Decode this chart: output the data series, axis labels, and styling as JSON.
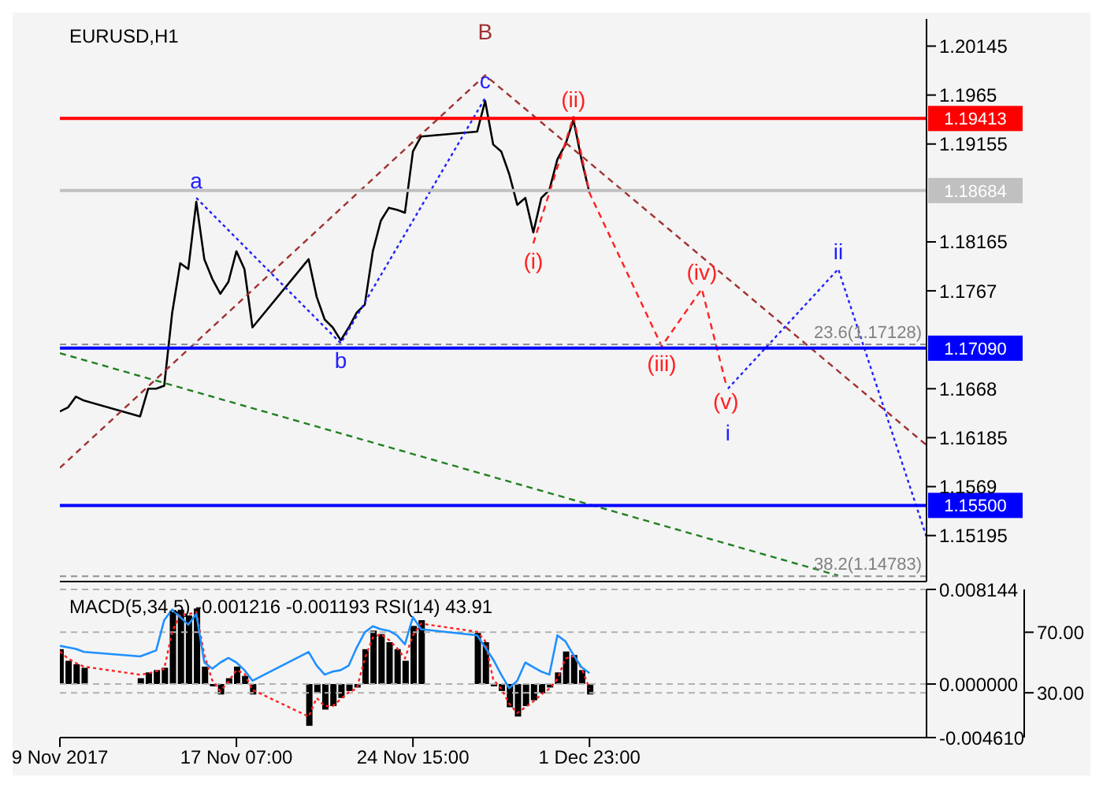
{
  "chart_data": [
    {
      "type": "line",
      "title": "EURUSD,H1",
      "xlim": [
        "2017-11-09T23:00",
        "2017-12-15T23:00"
      ],
      "tick_labels": "y",
      "ylim": [
        1.1473,
        1.2042
      ],
      "yticks": [
        1.20145,
        1.1965,
        1.19155,
        1.18165,
        1.1767,
        1.1668,
        1.16185,
        1.1569,
        1.15195
      ],
      "series": [
        {
          "color": "#000000",
          "line_style": "solid",
          "x": [
            "2017-11-09T23:00",
            "2017-11-10T07:00",
            "2017-11-10T15:00",
            "2017-11-10T23:00",
            "2017-11-13T07:00",
            "2017-11-13T15:00",
            "2017-11-13T23:00",
            "2017-11-14T07:00",
            "2017-11-14T15:00",
            "2017-11-14T23:00",
            "2017-11-15T07:00",
            "2017-11-15T15:00",
            "2017-11-15T23:00",
            "2017-11-16T07:00",
            "2017-11-16T15:00",
            "2017-11-16T23:00",
            "2017-11-17T07:00",
            "2017-11-17T15:00",
            "2017-11-17T23:00",
            "2017-11-20T07:00",
            "2017-11-20T15:00",
            "2017-11-20T23:00",
            "2017-11-21T07:00",
            "2017-11-21T15:00",
            "2017-11-21T23:00",
            "2017-11-22T07:00",
            "2017-11-22T15:00",
            "2017-11-22T23:00",
            "2017-11-23T07:00",
            "2017-11-23T15:00",
            "2017-11-23T23:00",
            "2017-11-24T07:00",
            "2017-11-24T15:00",
            "2017-11-24T23:00",
            "2017-11-27T07:00",
            "2017-11-27T15:00",
            "2017-11-27T23:00",
            "2017-11-28T07:00",
            "2017-11-28T15:00",
            "2017-11-28T23:00",
            "2017-11-29T07:00",
            "2017-11-29T15:00",
            "2017-11-29T23:00",
            "2017-11-30T07:00",
            "2017-11-30T15:00",
            "2017-11-30T23:00",
            "2017-12-01T07:00",
            "2017-12-01T15:00",
            "2017-12-01T23:00"
          ],
          "values": [
            1.1645,
            1.1649,
            1.166,
            1.1656,
            1.164,
            1.1668,
            1.1668,
            1.1671,
            1.1745,
            1.1795,
            1.1789,
            1.1857,
            1.1799,
            1.1779,
            1.1764,
            1.1776,
            1.1807,
            1.1789,
            1.173,
            1.1799,
            1.1761,
            1.1738,
            1.173,
            1.1717,
            1.173,
            1.1745,
            1.1753,
            1.1807,
            1.1838,
            1.1851,
            1.1849,
            1.1846,
            1.1908,
            1.1923,
            1.1928,
            1.1959,
            1.1915,
            1.1908,
            1.1885,
            1.1854,
            1.1861,
            1.1826,
            1.1861,
            1.1869,
            1.19,
            1.1915,
            1.194,
            1.19,
            1.1866
          ]
        },
        {
          "color": "#ff2020",
          "line_style": "dashed",
          "x": [
            "2017-11-29T15:00",
            "2017-12-01T07:00",
            "2017-12-01T23:00",
            "2017-12-04T23:00",
            "2017-12-06T15:00",
            "2017-12-07T15:00"
          ],
          "values": [
            1.1815,
            1.1943,
            1.1866,
            1.1711,
            1.1769,
            1.1673
          ]
        },
        {
          "color": "#2020ff",
          "line_style": "dotted",
          "x": [
            "2017-12-07T17:00",
            "2017-12-12T07:00",
            "2017-12-15T23:00"
          ],
          "values": [
            1.1668,
            1.1789,
            1.1518
          ]
        },
        {
          "color": "#2020ff",
          "line_style": "dotted",
          "x": [
            "2017-11-15T15:00",
            "2017-11-21T15:00",
            "2017-11-27T15:00"
          ],
          "values": [
            1.1861,
            1.1714,
            1.1962
          ]
        },
        {
          "color": "#a03030",
          "line_style": "dashed",
          "x": [
            "2017-11-09T23:00",
            "2017-11-27T15:00",
            "2017-12-15T23:00"
          ],
          "values": [
            1.1588,
            1.1985,
            1.1611
          ]
        },
        {
          "color": "#208020",
          "line_style": "dashed",
          "x": [
            "2017-11-09T23:00",
            "2017-12-12T07:00"
          ],
          "values": [
            1.1704,
            1.1479
          ]
        }
      ],
      "ref_lines": [
        {
          "axis": "y",
          "value": 1.19413,
          "label": "1.19413",
          "color": "#ff0000",
          "line_style": "solid"
        },
        {
          "axis": "y",
          "value": 1.18684,
          "label": "1.18684",
          "color": "#c0c0c0",
          "line_style": "solid"
        },
        {
          "axis": "y",
          "value": 1.1709,
          "label": "1.17090",
          "color": "#0000ff",
          "line_style": "solid"
        },
        {
          "axis": "y",
          "value": 1.155,
          "label": "1.15500",
          "color": "#0000ff",
          "line_style": "solid"
        },
        {
          "axis": "y",
          "value": 1.17128,
          "label": "23.6(1.17128)",
          "color": "#909090",
          "line_style": "dashed"
        },
        {
          "axis": "y",
          "value": 1.14783,
          "label": "38.2(1.14783)",
          "color": "#909090",
          "line_style": "dashed"
        }
      ],
      "annotations": [
        {
          "text": "c",
          "x": "2017-11-27T15:00",
          "y": 1.1962
        },
        {
          "text": "B",
          "x": "2017-11-27T15:00",
          "y": 1.1985
        },
        {
          "text": "a",
          "x": "2017-11-15T15:00",
          "y": 1.1861
        },
        {
          "text": "b",
          "x": "2017-11-21T15:00",
          "y": 1.1714
        },
        {
          "text": "(i)",
          "x": "2017-11-29T15:00",
          "y": 1.1815
        },
        {
          "text": "(ii)",
          "x": "2017-12-01T07:00",
          "y": 1.1943
        },
        {
          "text": "(iii)",
          "x": "2017-12-04T23:00",
          "y": 1.1711
        },
        {
          "text": "(iv)",
          "x": "2017-12-06T15:00",
          "y": 1.1769
        },
        {
          "text": "(v)",
          "x": "2017-12-07T15:00",
          "y": 1.1673
        },
        {
          "text": "i",
          "x": "2017-12-07T17:00",
          "y": 1.1668
        },
        {
          "text": "ii",
          "x": "2017-12-12T07:00",
          "y": 1.1789
        }
      ]
    },
    {
      "type": "bar",
      "title": "MACD(5,34,5) -0.001216 -0.001193 RSI(14) 43.91",
      "xlim": [
        "2017-11-09T23:00",
        "2017-12-15T23:00"
      ],
      "xticks": [
        {
          "value": "2017-11-09T23:00",
          "label": "9 Nov 2017"
        },
        {
          "value": "2017-11-17T07:00",
          "label": "17 Nov 07:00"
        },
        {
          "value": "2017-11-24T15:00",
          "label": "24 Nov 15:00"
        },
        {
          "value": "2017-12-01T23:00",
          "label": "1 Dec 23:00"
        }
      ],
      "ylim": [
        -0.00461,
        0.008144
      ],
      "yticks": [
        0.008144,
        {
          "value": 0,
          "label": "0.000000"
        },
        {
          "value": -0.00461,
          "label": "-0.004610"
        }
      ],
      "y2lim": [
        0.4,
        98.3
      ],
      "y2ticks": [
        {
          "value": 70,
          "label": "70.00"
        },
        {
          "value": 30,
          "label": "30.00"
        }
      ],
      "series": [
        {
          "color": "#000000",
          "x": [
            "2017-11-09T23:00",
            "2017-11-10T07:00",
            "2017-11-10T15:00",
            "2017-11-10T23:00",
            "2017-11-13T07:00",
            "2017-11-13T15:00",
            "2017-11-13T23:00",
            "2017-11-14T07:00",
            "2017-11-14T15:00",
            "2017-11-14T23:00",
            "2017-11-15T07:00",
            "2017-11-15T15:00",
            "2017-11-15T23:00",
            "2017-11-16T07:00",
            "2017-11-16T15:00",
            "2017-11-16T23:00",
            "2017-11-17T07:00",
            "2017-11-17T15:00",
            "2017-11-17T23:00",
            "2017-11-20T07:00",
            "2017-11-20T15:00",
            "2017-11-20T23:00",
            "2017-11-21T07:00",
            "2017-11-21T15:00",
            "2017-11-21T23:00",
            "2017-11-22T07:00",
            "2017-11-22T15:00",
            "2017-11-22T23:00",
            "2017-11-23T07:00",
            "2017-11-23T15:00",
            "2017-11-23T23:00",
            "2017-11-24T07:00",
            "2017-11-24T15:00",
            "2017-11-24T23:00",
            "2017-11-27T07:00",
            "2017-11-27T15:00",
            "2017-11-27T23:00",
            "2017-11-28T07:00",
            "2017-11-28T15:00",
            "2017-11-28T23:00",
            "2017-11-29T07:00",
            "2017-11-29T15:00",
            "2017-11-29T23:00",
            "2017-11-30T07:00",
            "2017-11-30T15:00",
            "2017-11-30T23:00",
            "2017-12-01T07:00",
            "2017-12-01T15:00",
            "2017-12-01T23:00"
          ],
          "values": [
            0.003,
            0.002,
            0.0017,
            0.0014,
            0.0005,
            0.001,
            0.0012,
            0.0014,
            0.0062,
            0.0064,
            0.0059,
            0.0065,
            0.0015,
            -0.0002,
            -0.0009,
            0.0005,
            0.0015,
            0.0007,
            -0.0009,
            -0.0036,
            -0.0008,
            -0.0022,
            -0.0019,
            -0.0012,
            -0.0006,
            -0.0003,
            0.003,
            0.0046,
            0.0043,
            0.0036,
            0.003,
            0.002,
            0.005,
            0.0055,
            0.0044,
            0.0036,
            -0.0002,
            -0.0006,
            -0.002,
            -0.0028,
            -0.0019,
            -0.0014,
            -0.0008,
            -0.0003,
            0.001,
            0.0028,
            0.0025,
            0.0012,
            -0.0009
          ]
        },
        {
          "type": "line",
          "color": "#ff2020",
          "line_style": "dotted",
          "x": [
            "2017-11-09T23:00",
            "2017-11-10T07:00",
            "2017-11-10T15:00",
            "2017-11-10T23:00",
            "2017-11-13T07:00",
            "2017-11-13T15:00",
            "2017-11-13T23:00",
            "2017-11-14T07:00",
            "2017-11-14T15:00",
            "2017-11-14T23:00",
            "2017-11-15T07:00",
            "2017-11-15T15:00",
            "2017-11-15T23:00",
            "2017-11-16T07:00",
            "2017-11-16T15:00",
            "2017-11-16T23:00",
            "2017-11-17T07:00",
            "2017-11-17T15:00",
            "2017-11-17T23:00",
            "2017-11-20T07:00",
            "2017-11-20T15:00",
            "2017-11-20T23:00",
            "2017-11-21T07:00",
            "2017-11-21T15:00",
            "2017-11-21T23:00",
            "2017-11-22T07:00",
            "2017-11-22T15:00",
            "2017-11-22T23:00",
            "2017-11-23T07:00",
            "2017-11-23T15:00",
            "2017-11-23T23:00",
            "2017-11-24T07:00",
            "2017-11-24T15:00",
            "2017-11-24T23:00",
            "2017-11-27T07:00",
            "2017-11-27T15:00",
            "2017-11-27T23:00",
            "2017-11-28T07:00",
            "2017-11-28T15:00",
            "2017-11-28T23:00",
            "2017-11-29T07:00",
            "2017-11-29T15:00",
            "2017-11-29T23:00",
            "2017-11-30T07:00",
            "2017-11-30T15:00",
            "2017-11-30T23:00",
            "2017-12-01T07:00",
            "2017-12-01T15:00",
            "2017-12-01T23:00"
          ],
          "values": [
            0.0028,
            0.0022,
            0.0018,
            0.0015,
            0.0008,
            0.0009,
            0.0011,
            0.0013,
            0.0045,
            0.006,
            0.006,
            0.0062,
            0.0025,
            0.0003,
            -0.0006,
            0.0002,
            0.0012,
            0.0009,
            -0.0005,
            -0.0028,
            -0.0012,
            -0.0019,
            -0.0019,
            -0.0013,
            -0.0007,
            -0.0004,
            0.0022,
            0.004,
            0.0043,
            0.0038,
            0.0031,
            0.0022,
            0.0042,
            0.0052,
            0.0045,
            0.0037,
            0.0004,
            -0.0004,
            -0.0017,
            -0.0025,
            -0.002,
            -0.0015,
            -0.0009,
            -0.0004,
            0.0004,
            0.0022,
            0.0024,
            0.0014,
            -0.0004
          ]
        },
        {
          "type": "line",
          "axis": "y2",
          "color": "#1e90ff",
          "line_style": "solid",
          "x": [
            "2017-11-09T23:00",
            "2017-11-10T07:00",
            "2017-11-10T15:00",
            "2017-11-10T23:00",
            "2017-11-13T07:00",
            "2017-11-13T15:00",
            "2017-11-13T23:00",
            "2017-11-14T07:00",
            "2017-11-14T15:00",
            "2017-11-14T23:00",
            "2017-11-15T07:00",
            "2017-11-15T15:00",
            "2017-11-15T23:00",
            "2017-11-16T07:00",
            "2017-11-16T15:00",
            "2017-11-16T23:00",
            "2017-11-17T07:00",
            "2017-11-17T15:00",
            "2017-11-17T23:00",
            "2017-11-20T07:00",
            "2017-11-20T15:00",
            "2017-11-20T23:00",
            "2017-11-21T07:00",
            "2017-11-21T15:00",
            "2017-11-21T23:00",
            "2017-11-22T07:00",
            "2017-11-22T15:00",
            "2017-11-22T23:00",
            "2017-11-23T07:00",
            "2017-11-23T15:00",
            "2017-11-23T23:00",
            "2017-11-24T07:00",
            "2017-11-24T15:00",
            "2017-11-24T23:00",
            "2017-11-27T07:00",
            "2017-11-27T15:00",
            "2017-11-27T23:00",
            "2017-11-28T07:00",
            "2017-11-28T15:00",
            "2017-11-28T23:00",
            "2017-11-29T07:00",
            "2017-11-29T15:00",
            "2017-11-29T23:00",
            "2017-11-30T07:00",
            "2017-11-30T15:00",
            "2017-11-30T23:00",
            "2017-12-01T07:00",
            "2017-12-01T15:00",
            "2017-12-01T23:00"
          ],
          "values": [
            61,
            60,
            59,
            57,
            54,
            56,
            58,
            78,
            85,
            80,
            75,
            82,
            50,
            46,
            50,
            53,
            50,
            45,
            38,
            57,
            48,
            42,
            44,
            45,
            48,
            60,
            70,
            74,
            72,
            71,
            68,
            62,
            80,
            72,
            68,
            60,
            52,
            42,
            33,
            38,
            50,
            47,
            44,
            42,
            68,
            64,
            55,
            47,
            43
          ]
        }
      ],
      "grid": "y"
    }
  ]
}
